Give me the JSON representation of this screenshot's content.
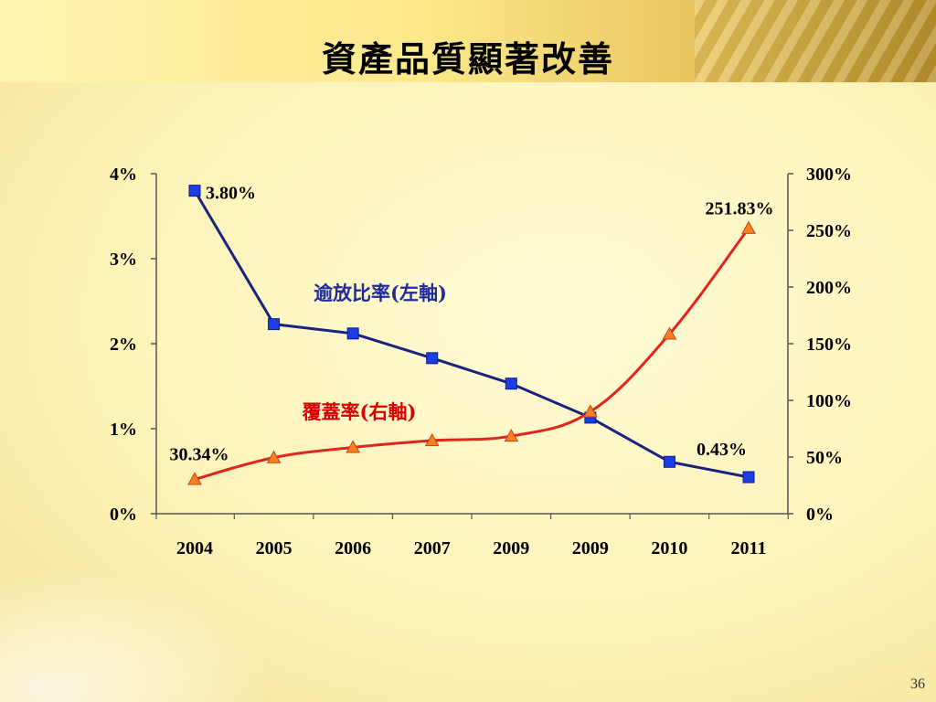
{
  "slide": {
    "title": "資產品質顯著改善",
    "page_number": "36"
  },
  "colors": {
    "npl_line": "#1a237e",
    "npl_marker": "#1e3ce6",
    "coverage_line": "#e0251b",
    "coverage_marker": "#f5821f",
    "npl_label": "#1f2a9c",
    "coverage_label": "#d90000"
  },
  "chart_data": {
    "type": "line",
    "categories": [
      "2004",
      "2005",
      "2006",
      "2007",
      "2009",
      "2009",
      "2010",
      "2011"
    ],
    "y_left": {
      "ylim": [
        0,
        4
      ],
      "ticks": [
        "0%",
        "1%",
        "2%",
        "3%",
        "4%"
      ]
    },
    "y_right": {
      "ylim": [
        0,
        300
      ],
      "ticks": [
        "0%",
        "50%",
        "100%",
        "150%",
        "200%",
        "250%",
        "300%"
      ]
    },
    "series": [
      {
        "name": "逾放比率(左軸)",
        "axis": "left",
        "marker": "square",
        "values": [
          3.8,
          2.23,
          2.12,
          1.83,
          1.53,
          1.13,
          0.61,
          0.43
        ]
      },
      {
        "name": "覆蓋率(右軸)",
        "axis": "right",
        "marker": "triangle",
        "values": [
          30.34,
          49.5,
          58.5,
          64.5,
          68.5,
          90.0,
          158.5,
          251.83
        ]
      }
    ],
    "data_labels": [
      {
        "series": 0,
        "index": 0,
        "text": "3.80%"
      },
      {
        "series": 0,
        "index": 7,
        "text": "0.43%"
      },
      {
        "series": 1,
        "index": 0,
        "text": "30.34%"
      },
      {
        "series": 1,
        "index": 7,
        "text": "251.83%"
      }
    ],
    "grid": false,
    "legend": "inline"
  }
}
